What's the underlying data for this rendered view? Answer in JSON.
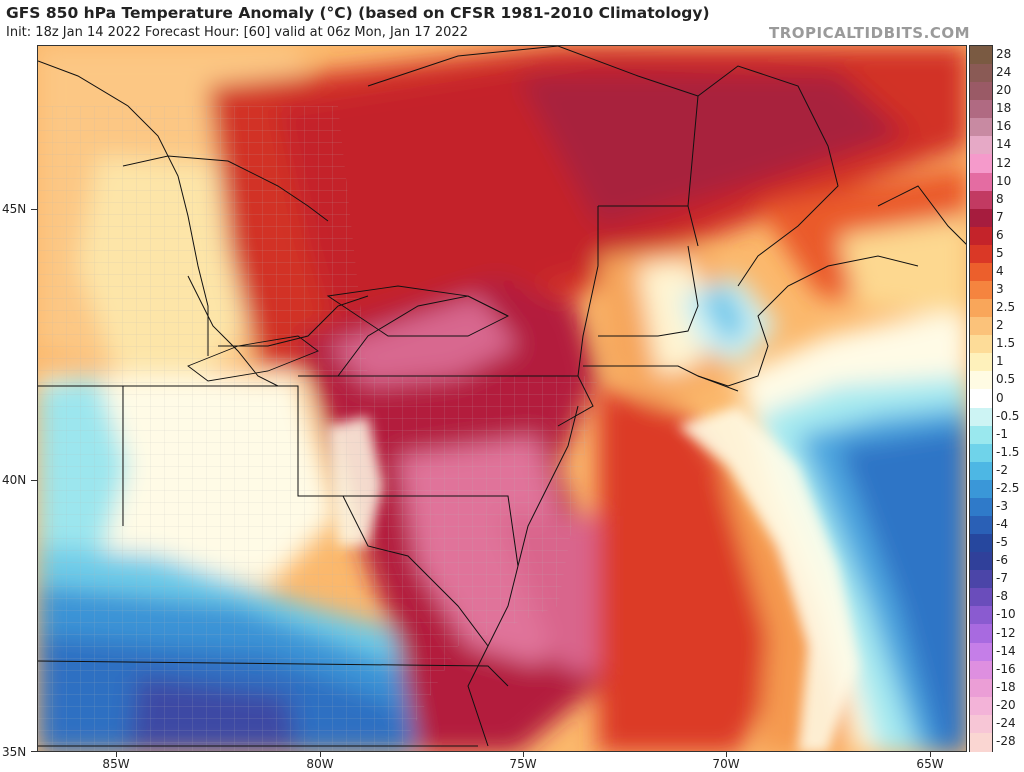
{
  "header": {
    "title": "GFS 850 hPa Temperature Anomaly (°C) (based on CFSR 1981-2010 Climatology)",
    "subtitle": "Init: 18z Jan 14 2022   Forecast Hour: [60]   valid at 06z Mon, Jan 17 2022",
    "site": "TROPICALTIDBITS.COM"
  },
  "axes": {
    "lat_labels": [
      "45N",
      "40N",
      "35N"
    ],
    "lon_labels": [
      "85W",
      "80W",
      "75W",
      "70W",
      "65W"
    ]
  },
  "colorbar": {
    "levels": [
      {
        "label": "28",
        "color": "#7a5a42"
      },
      {
        "label": "24",
        "color": "#8a5a55"
      },
      {
        "label": "20",
        "color": "#9a5a66"
      },
      {
        "label": "18",
        "color": "#b06a82"
      },
      {
        "label": "16",
        "color": "#c88aa2"
      },
      {
        "label": "14",
        "color": "#e6a9c6"
      },
      {
        "label": "12",
        "color": "#f59acb"
      },
      {
        "label": "10",
        "color": "#e46ca2"
      },
      {
        "label": "8",
        "color": "#c23a62"
      },
      {
        "label": "7",
        "color": "#a61c3e"
      },
      {
        "label": "6",
        "color": "#c4232a"
      },
      {
        "label": "5",
        "color": "#da3826"
      },
      {
        "label": "4",
        "color": "#ec5f2c"
      },
      {
        "label": "3",
        "color": "#f5843f"
      },
      {
        "label": "2.5",
        "color": "#f9a65a"
      },
      {
        "label": "2",
        "color": "#fbc27a"
      },
      {
        "label": "1.5",
        "color": "#fddc98"
      },
      {
        "label": "1",
        "color": "#fef1bb"
      },
      {
        "label": "0.5",
        "color": "#fffbe3"
      },
      {
        "label": "0",
        "color": "#ffffff"
      },
      {
        "label": "-0.5",
        "color": "#cdf4f4"
      },
      {
        "label": "-1",
        "color": "#9ae8ee"
      },
      {
        "label": "-1.5",
        "color": "#6fd3ea"
      },
      {
        "label": "-2",
        "color": "#4db7e4"
      },
      {
        "label": "-2.5",
        "color": "#3a97d8"
      },
      {
        "label": "-3",
        "color": "#2f7ac9"
      },
      {
        "label": "-4",
        "color": "#2a60b6"
      },
      {
        "label": "-5",
        "color": "#26479e"
      },
      {
        "label": "-6",
        "color": "#30409a"
      },
      {
        "label": "-7",
        "color": "#4b45a8"
      },
      {
        "label": "-8",
        "color": "#6a4dbb"
      },
      {
        "label": "-10",
        "color": "#8a5bd0"
      },
      {
        "label": "-12",
        "color": "#a86ae0"
      },
      {
        "label": "-14",
        "color": "#c57ee8"
      },
      {
        "label": "-16",
        "color": "#de8fe0"
      },
      {
        "label": "-18",
        "color": "#eb9ed6"
      },
      {
        "label": "-20",
        "color": "#f3b3d8"
      },
      {
        "label": "-24",
        "color": "#f7c6d6"
      },
      {
        "label": "-28",
        "color": "#fad6d2"
      }
    ]
  }
}
